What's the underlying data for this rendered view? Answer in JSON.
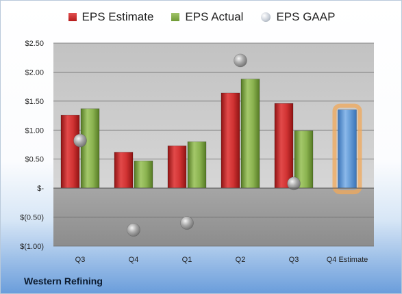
{
  "chart_data": {
    "type": "bar",
    "categories": [
      "Q3",
      "Q4",
      "Q1",
      "Q2",
      "Q3",
      "Q4 Estimate"
    ],
    "series": [
      {
        "name": "EPS Estimate",
        "color": "#c62828",
        "values": [
          1.26,
          0.62,
          0.73,
          1.64,
          1.46,
          null
        ]
      },
      {
        "name": "EPS Actual",
        "color": "#7ea543",
        "values": [
          1.37,
          0.47,
          0.8,
          1.88,
          0.99,
          null
        ]
      },
      {
        "name": "EPS GAAP",
        "color": "#b8bfc8",
        "values": [
          0.82,
          -0.72,
          -0.6,
          2.2,
          0.08,
          null
        ]
      }
    ],
    "forecast": {
      "category": "Q4 Estimate",
      "value": 1.35,
      "color": "#5b9bd5",
      "highlight": "#f0a85a"
    },
    "ylim": [
      -1.0,
      2.5
    ],
    "yticks": [
      2.5,
      2.0,
      1.5,
      1.0,
      0.5,
      0,
      -0.5,
      -1.0
    ],
    "ytick_labels": [
      "$2.50",
      "$2.00",
      "$1.50",
      "$1.00",
      "$0.50",
      "$-",
      "$(0.50)",
      "$(1.00)"
    ],
    "grid": true,
    "legend_position": "top-center"
  },
  "legend": {
    "estimate": "EPS Estimate",
    "actual": "EPS Actual",
    "gaap": "EPS GAAP"
  },
  "company": "Western Refining"
}
